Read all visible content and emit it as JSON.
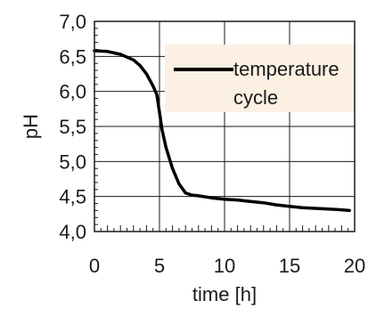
{
  "chart_data": {
    "type": "line",
    "xlabel": "time [h]",
    "ylabel": "pH",
    "xlim": [
      0,
      20
    ],
    "ylim": [
      4.0,
      7.0
    ],
    "x_ticks": [
      0,
      5,
      10,
      15,
      20
    ],
    "x_tick_labels": [
      "0",
      "5",
      "10",
      "15",
      "20"
    ],
    "y_ticks": [
      4.0,
      4.5,
      5.0,
      5.5,
      6.0,
      6.5,
      7.0
    ],
    "y_tick_labels": [
      "4,0",
      "4,5",
      "5,0",
      "5,5",
      "6,0",
      "6,5",
      "7,0"
    ],
    "grid": true,
    "legend_position": "top-right",
    "series": [
      {
        "name": "temperature cycle",
        "color": "#000000",
        "x": [
          0,
          1,
          2,
          3,
          3.5,
          4,
          4.5,
          4.8,
          5.0,
          5.2,
          5.5,
          6.0,
          6.5,
          7.0,
          7.5,
          8,
          9,
          10,
          11,
          12,
          13,
          14,
          15,
          16,
          17,
          18,
          19,
          19.6
        ],
        "y": [
          6.58,
          6.57,
          6.53,
          6.45,
          6.37,
          6.25,
          6.08,
          5.95,
          5.7,
          5.45,
          5.2,
          4.9,
          4.68,
          4.55,
          4.52,
          4.51,
          4.48,
          4.46,
          4.45,
          4.43,
          4.41,
          4.38,
          4.36,
          4.34,
          4.33,
          4.32,
          4.31,
          4.3
        ]
      }
    ]
  },
  "legend": {
    "line1": "temperature",
    "line2": "cycle",
    "background": "#fbf0e2"
  }
}
